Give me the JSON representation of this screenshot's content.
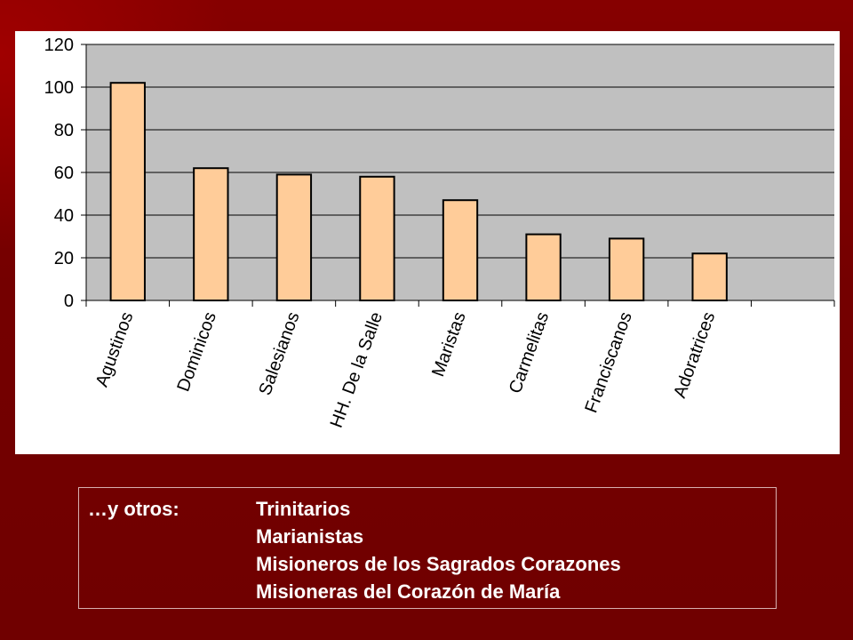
{
  "chart_data": {
    "type": "bar",
    "categories": [
      "Agustinos",
      "Dominicos",
      "Salesianos",
      "HH. De la Salle",
      "Maristas",
      "Carmelitas",
      "Franciscanos",
      "Adoratrices"
    ],
    "values": [
      102,
      62,
      59,
      58,
      47,
      31,
      29,
      22
    ],
    "ylim": [
      0,
      120
    ],
    "yticks": [
      0,
      20,
      40,
      60,
      80,
      100,
      120
    ],
    "grid": true,
    "legend": "none",
    "colors": {
      "bar_fill": "#ffcc99",
      "bar_stroke": "#000000",
      "plot_bg": "#c0c0c0",
      "panel_bg": "#ffffff",
      "gridline": "#000000"
    }
  },
  "others": {
    "label": "…y otros:",
    "items": [
      "Trinitarios",
      "Marianistas",
      "Misioneros de los Sagrados Corazones",
      "Misioneras del Corazón de María"
    ]
  }
}
